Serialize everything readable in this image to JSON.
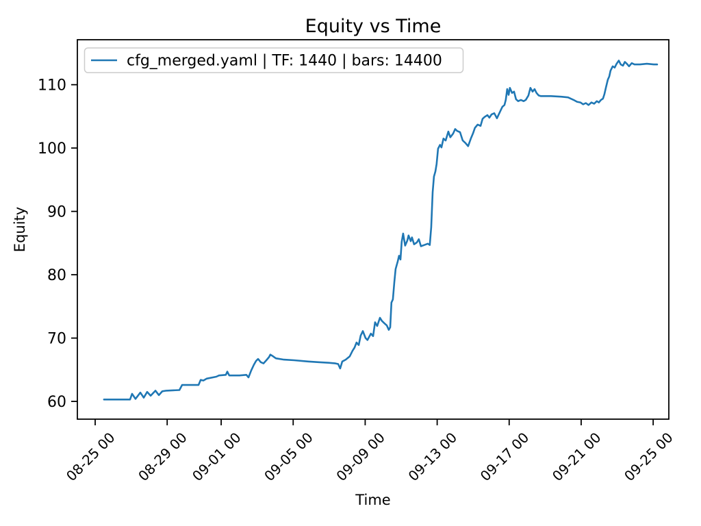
{
  "figure": {
    "background_color": "#ffffff",
    "text_color": "#000000",
    "spine_color": "#000000",
    "legend_border_color": "#cccccc"
  },
  "chart_data": {
    "type": "line",
    "title": "Equity vs Time",
    "xlabel": "Time",
    "ylabel": "Equity",
    "grid": false,
    "legend_position": "upper left",
    "legend": [
      {
        "label": "cfg_merged.yaml | TF: 1440 | bars: 14400",
        "color": "#1f77b4"
      }
    ],
    "x_unit": "days since 08-25 00:00, labels formatted MM-DD HH",
    "xlim": [
      -0.99,
      31.87
    ],
    "ylim": [
      57.2,
      117.1
    ],
    "x_ticks": [
      {
        "pos": 0,
        "label": "08-25 00"
      },
      {
        "pos": 4,
        "label": "08-29 00"
      },
      {
        "pos": 7,
        "label": "09-01 00"
      },
      {
        "pos": 11,
        "label": "09-05 00"
      },
      {
        "pos": 15,
        "label": "09-09 00"
      },
      {
        "pos": 19,
        "label": "09-13 00"
      },
      {
        "pos": 23,
        "label": "09-17 00"
      },
      {
        "pos": 27,
        "label": "09-21 00"
      },
      {
        "pos": 31,
        "label": "09-25 00"
      }
    ],
    "y_ticks": [
      {
        "pos": 60,
        "label": "60"
      },
      {
        "pos": 70,
        "label": "70"
      },
      {
        "pos": 80,
        "label": "80"
      },
      {
        "pos": 90,
        "label": "90"
      },
      {
        "pos": 100,
        "label": "100"
      },
      {
        "pos": 110,
        "label": "110"
      }
    ],
    "series": [
      {
        "name": "cfg_merged.yaml | TF: 1440 | bars: 14400",
        "color": "#1f77b4",
        "line_width": 2.6,
        "points": [
          [
            0.49,
            60.3
          ],
          [
            1.94,
            60.3
          ],
          [
            2.05,
            61.2
          ],
          [
            2.24,
            60.4
          ],
          [
            2.51,
            61.4
          ],
          [
            2.7,
            60.6
          ],
          [
            2.89,
            61.5
          ],
          [
            3.08,
            60.9
          ],
          [
            3.35,
            61.7
          ],
          [
            3.54,
            61.0
          ],
          [
            3.73,
            61.6
          ],
          [
            3.95,
            61.7
          ],
          [
            4.68,
            61.8
          ],
          [
            4.83,
            62.6
          ],
          [
            5.74,
            62.6
          ],
          [
            5.86,
            63.4
          ],
          [
            6.01,
            63.3
          ],
          [
            6.2,
            63.6
          ],
          [
            6.73,
            63.9
          ],
          [
            6.88,
            64.1
          ],
          [
            7.26,
            64.2
          ],
          [
            7.34,
            64.7
          ],
          [
            7.45,
            64.1
          ],
          [
            8.02,
            64.1
          ],
          [
            8.4,
            64.2
          ],
          [
            8.52,
            63.8
          ],
          [
            8.67,
            64.9
          ],
          [
            8.82,
            65.8
          ],
          [
            8.94,
            66.4
          ],
          [
            9.05,
            66.7
          ],
          [
            9.2,
            66.2
          ],
          [
            9.35,
            66.0
          ],
          [
            9.51,
            66.5
          ],
          [
            9.66,
            67.0
          ],
          [
            9.73,
            67.4
          ],
          [
            9.89,
            67.1
          ],
          [
            10.04,
            66.8
          ],
          [
            10.49,
            66.6
          ],
          [
            11.06,
            66.5
          ],
          [
            11.83,
            66.3
          ],
          [
            12.4,
            66.2
          ],
          [
            12.97,
            66.1
          ],
          [
            13.35,
            66.0
          ],
          [
            13.5,
            65.9
          ],
          [
            13.61,
            65.2
          ],
          [
            13.73,
            66.3
          ],
          [
            13.92,
            66.6
          ],
          [
            14.14,
            67.1
          ],
          [
            14.3,
            68.0
          ],
          [
            14.41,
            68.5
          ],
          [
            14.52,
            69.3
          ],
          [
            14.64,
            68.9
          ],
          [
            14.75,
            70.4
          ],
          [
            14.87,
            71.1
          ],
          [
            15.02,
            70.0
          ],
          [
            15.13,
            69.7
          ],
          [
            15.32,
            70.7
          ],
          [
            15.44,
            70.3
          ],
          [
            15.55,
            72.5
          ],
          [
            15.67,
            71.9
          ],
          [
            15.82,
            73.2
          ],
          [
            15.93,
            72.7
          ],
          [
            16.08,
            72.3
          ],
          [
            16.2,
            72.0
          ],
          [
            16.31,
            71.3
          ],
          [
            16.39,
            71.7
          ],
          [
            16.46,
            75.6
          ],
          [
            16.54,
            76.1
          ],
          [
            16.62,
            78.8
          ],
          [
            16.69,
            80.9
          ],
          [
            16.81,
            82.1
          ],
          [
            16.88,
            83.0
          ],
          [
            16.96,
            82.4
          ],
          [
            17.03,
            85.2
          ],
          [
            17.11,
            86.5
          ],
          [
            17.22,
            84.6
          ],
          [
            17.34,
            85.4
          ],
          [
            17.41,
            86.2
          ],
          [
            17.53,
            85.3
          ],
          [
            17.6,
            85.9
          ],
          [
            17.72,
            84.8
          ],
          [
            17.87,
            85.1
          ],
          [
            17.98,
            85.6
          ],
          [
            18.1,
            84.5
          ],
          [
            18.29,
            84.7
          ],
          [
            18.48,
            84.9
          ],
          [
            18.59,
            84.7
          ],
          [
            18.67,
            87.5
          ],
          [
            18.75,
            93.0
          ],
          [
            18.82,
            95.5
          ],
          [
            18.9,
            96.3
          ],
          [
            18.97,
            97.5
          ],
          [
            19.05,
            99.9
          ],
          [
            19.16,
            100.5
          ],
          [
            19.24,
            100.1
          ],
          [
            19.35,
            101.5
          ],
          [
            19.47,
            101.2
          ],
          [
            19.62,
            102.6
          ],
          [
            19.73,
            101.7
          ],
          [
            19.89,
            102.3
          ],
          [
            20.0,
            103.0
          ],
          [
            20.11,
            102.7
          ],
          [
            20.27,
            102.5
          ],
          [
            20.42,
            101.2
          ],
          [
            20.57,
            100.8
          ],
          [
            20.72,
            100.3
          ],
          [
            20.87,
            101.5
          ],
          [
            20.99,
            102.3
          ],
          [
            21.1,
            103.2
          ],
          [
            21.25,
            103.7
          ],
          [
            21.41,
            103.5
          ],
          [
            21.52,
            104.6
          ],
          [
            21.63,
            104.9
          ],
          [
            21.79,
            105.2
          ],
          [
            21.9,
            104.8
          ],
          [
            22.02,
            105.3
          ],
          [
            22.17,
            105.5
          ],
          [
            22.32,
            104.7
          ],
          [
            22.47,
            105.6
          ],
          [
            22.62,
            106.5
          ],
          [
            22.74,
            106.8
          ],
          [
            22.81,
            107.6
          ],
          [
            22.89,
            109.3
          ],
          [
            22.97,
            108.4
          ],
          [
            23.04,
            109.5
          ],
          [
            23.16,
            108.7
          ],
          [
            23.27,
            108.9
          ],
          [
            23.38,
            107.7
          ],
          [
            23.5,
            107.4
          ],
          [
            23.65,
            107.6
          ],
          [
            23.8,
            107.4
          ],
          [
            23.92,
            107.6
          ],
          [
            24.07,
            108.3
          ],
          [
            24.18,
            109.5
          ],
          [
            24.3,
            108.9
          ],
          [
            24.41,
            109.3
          ],
          [
            24.52,
            108.7
          ],
          [
            24.64,
            108.3
          ],
          [
            24.75,
            108.2
          ],
          [
            25.32,
            108.2
          ],
          [
            25.89,
            108.1
          ],
          [
            26.27,
            108.0
          ],
          [
            26.58,
            107.6
          ],
          [
            26.77,
            107.3
          ],
          [
            26.96,
            107.2
          ],
          [
            27.11,
            106.9
          ],
          [
            27.26,
            107.1
          ],
          [
            27.41,
            106.8
          ],
          [
            27.57,
            107.2
          ],
          [
            27.72,
            107.0
          ],
          [
            27.87,
            107.4
          ],
          [
            27.98,
            107.2
          ],
          [
            28.1,
            107.6
          ],
          [
            28.21,
            107.8
          ],
          [
            28.29,
            108.5
          ],
          [
            28.37,
            109.5
          ],
          [
            28.48,
            110.8
          ],
          [
            28.56,
            111.3
          ],
          [
            28.63,
            112.2
          ],
          [
            28.75,
            112.9
          ],
          [
            28.86,
            112.7
          ],
          [
            28.97,
            113.3
          ],
          [
            29.09,
            113.8
          ],
          [
            29.2,
            113.2
          ],
          [
            29.32,
            113.0
          ],
          [
            29.43,
            113.6
          ],
          [
            29.54,
            113.3
          ],
          [
            29.66,
            112.9
          ],
          [
            29.81,
            113.4
          ],
          [
            29.96,
            113.2
          ],
          [
            30.27,
            113.2
          ],
          [
            30.65,
            113.3
          ],
          [
            31.03,
            113.2
          ],
          [
            31.22,
            113.2
          ]
        ]
      }
    ]
  }
}
